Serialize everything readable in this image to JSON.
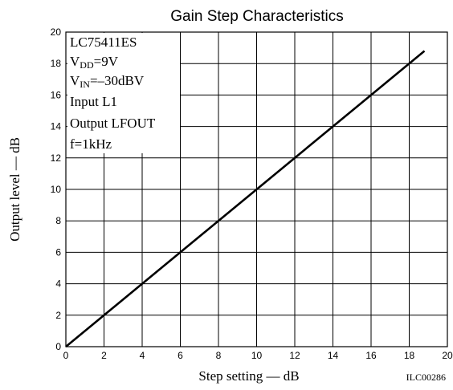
{
  "chart_data": {
    "type": "line",
    "title": "Gain Step Characteristics",
    "xlabel": "Step setting — dB",
    "ylabel": "Output level — dB",
    "xlim": [
      0,
      20
    ],
    "ylim": [
      0,
      20
    ],
    "x_ticks": [
      0,
      2,
      4,
      6,
      8,
      10,
      12,
      14,
      16,
      18,
      20
    ],
    "y_ticks": [
      0,
      2,
      4,
      6,
      8,
      10,
      12,
      14,
      16,
      18,
      20
    ],
    "grid": true,
    "series": [
      {
        "x": [
          0,
          18.8
        ],
        "y": [
          0,
          18.8
        ]
      }
    ],
    "annotations": {
      "part": "LC75411ES",
      "vdd": {
        "base": "V",
        "sub": "DD",
        "value": "=9V"
      },
      "vin": {
        "base": "V",
        "sub": "IN",
        "value": "=–30dBV"
      },
      "input": "Input L1",
      "output": "Output LFOUT",
      "freq": "f=1kHz"
    },
    "figure_code": "ILC00286"
  }
}
